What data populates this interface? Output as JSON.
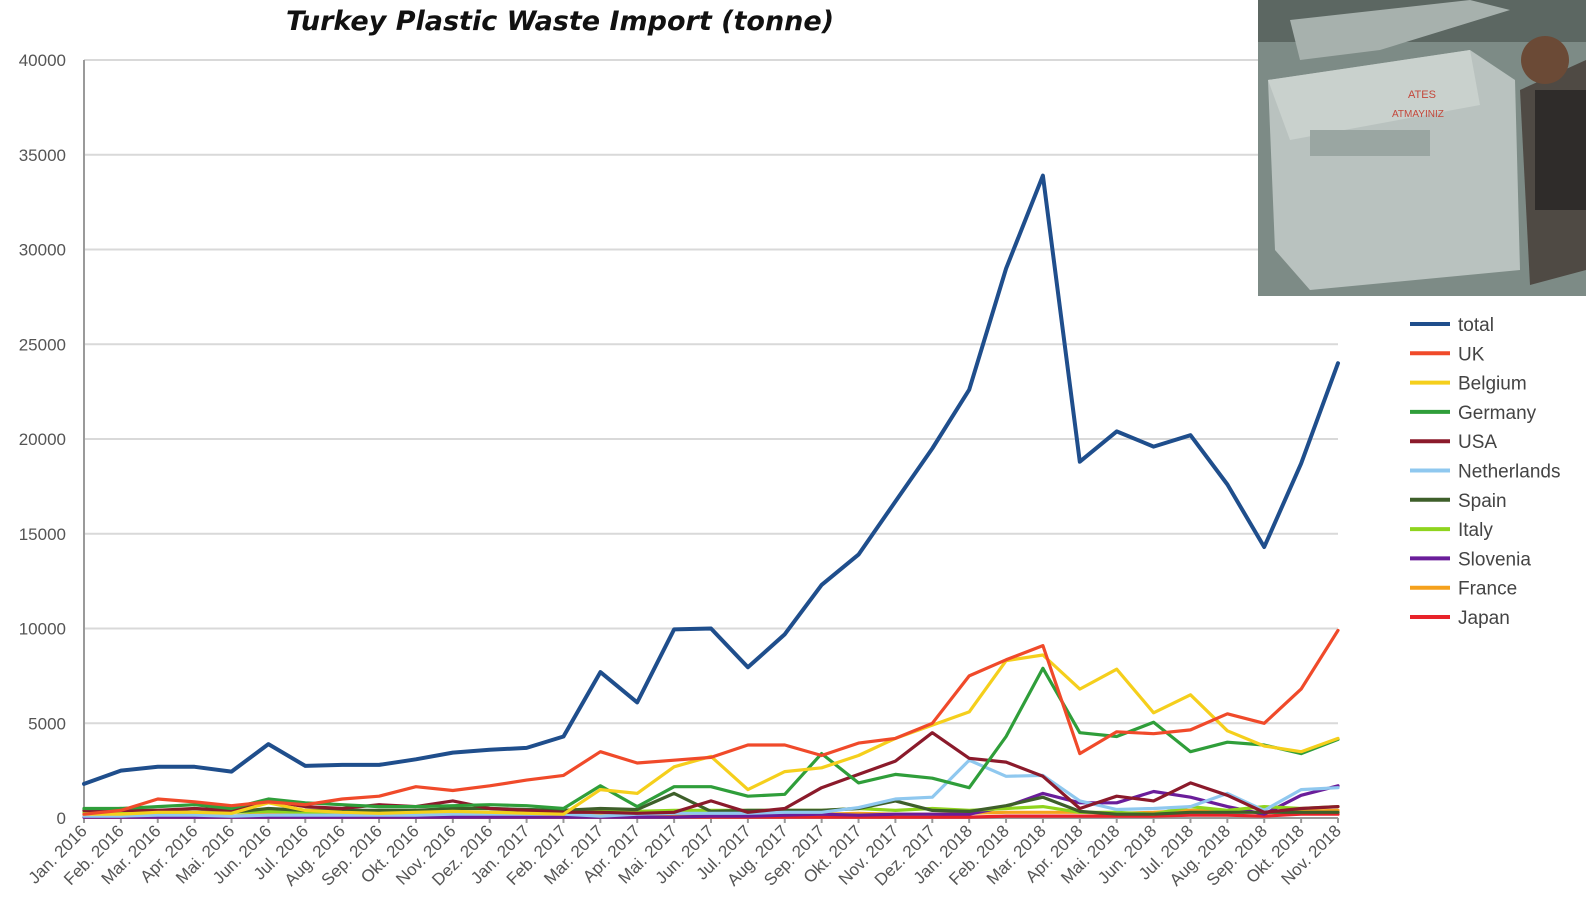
{
  "chart_data": {
    "type": "line",
    "title": "Turkey Plastic Waste Import (tonne)",
    "xlabel": "",
    "ylabel": "",
    "ylim": [
      0,
      40000
    ],
    "yticks": [
      0,
      5000,
      10000,
      15000,
      20000,
      25000,
      30000,
      35000,
      40000
    ],
    "grid": true,
    "legend_position": "right",
    "categories": [
      "Jan. 2016",
      "Feb. 2016",
      "Mar. 2016",
      "Apr. 2016",
      "Mai. 2016",
      "Jun. 2016",
      "Jul. 2016",
      "Aug. 2016",
      "Sep. 2016",
      "Okt. 2016",
      "Nov. 2016",
      "Dez. 2016",
      "Jan. 2017",
      "Feb. 2017",
      "Mar. 2017",
      "Apr. 2017",
      "Mai. 2017",
      "Jun. 2017",
      "Jul. 2017",
      "Aug. 2017",
      "Sep. 2017",
      "Okt. 2017",
      "Nov. 2017",
      "Dez. 2017",
      "Jan. 2018",
      "Feb. 2018",
      "Mar. 2018",
      "Apr. 2018",
      "Mai. 2018",
      "Jun. 2018",
      "Jul. 2018",
      "Aug. 2018",
      "Sep. 2018",
      "Okt. 2018",
      "Nov. 2018"
    ],
    "series": [
      {
        "name": "total",
        "color": "#1f4e8c",
        "values": [
          1800,
          2500,
          2700,
          2700,
          2450,
          3900,
          2750,
          2800,
          2800,
          3100,
          3450,
          3600,
          3700,
          4300,
          7700,
          6100,
          9950,
          10000,
          7950,
          9700,
          12300,
          13900,
          16700,
          19500,
          22600,
          29000,
          33900,
          18800,
          20400,
          19600,
          20200,
          17600,
          14300,
          18700,
          24000
        ]
      },
      {
        "name": "UK",
        "color": "#f04a2a",
        "values": [
          200,
          400,
          1000,
          850,
          650,
          850,
          700,
          1000,
          1150,
          1650,
          1450,
          1700,
          2000,
          2250,
          3500,
          2900,
          3050,
          3200,
          3850,
          3850,
          3300,
          3950,
          4200,
          5000,
          7500,
          8350,
          9100,
          3400,
          4550,
          4450,
          4650,
          5500,
          5000,
          6800,
          9900
        ]
      },
      {
        "name": "Belgium",
        "color": "#f5cf1c",
        "values": [
          200,
          200,
          300,
          300,
          250,
          800,
          400,
          300,
          250,
          300,
          350,
          300,
          250,
          200,
          1500,
          1300,
          2700,
          3250,
          1500,
          2450,
          2650,
          3300,
          4200,
          4900,
          5600,
          8300,
          8600,
          6800,
          7850,
          5550,
          6500,
          4600,
          3800,
          3500,
          4200
        ]
      },
      {
        "name": "Germany",
        "color": "#2f9e3a",
        "values": [
          500,
          500,
          600,
          700,
          500,
          1000,
          800,
          700,
          600,
          600,
          650,
          700,
          650,
          500,
          1700,
          600,
          1650,
          1650,
          1150,
          1250,
          3400,
          1850,
          2300,
          2100,
          1600,
          4300,
          7900,
          4500,
          4300,
          5050,
          3500,
          4000,
          3850,
          3400,
          4150
        ]
      },
      {
        "name": "USA",
        "color": "#8b1a2b",
        "values": [
          400,
          400,
          400,
          500,
          400,
          900,
          600,
          500,
          700,
          600,
          900,
          500,
          400,
          300,
          300,
          250,
          300,
          900,
          300,
          500,
          1600,
          2300,
          3000,
          4500,
          3150,
          2950,
          2200,
          500,
          1150,
          900,
          1850,
          1200,
          300,
          500,
          600
        ]
      },
      {
        "name": "Netherlands",
        "color": "#8fc8ef",
        "values": [
          100,
          100,
          150,
          150,
          100,
          150,
          150,
          150,
          150,
          150,
          200,
          200,
          200,
          200,
          100,
          200,
          250,
          250,
          250,
          300,
          300,
          550,
          1000,
          1100,
          3050,
          2200,
          2250,
          900,
          450,
          500,
          600,
          1300,
          400,
          1500,
          1600
        ]
      },
      {
        "name": "Spain",
        "color": "#3e5f2a",
        "values": [
          400,
          500,
          300,
          300,
          300,
          500,
          400,
          400,
          400,
          400,
          500,
          500,
          450,
          400,
          500,
          450,
          1300,
          350,
          400,
          400,
          400,
          500,
          900,
          400,
          350,
          650,
          1100,
          350,
          200,
          200,
          300,
          300,
          300,
          300,
          300
        ]
      },
      {
        "name": "Italy",
        "color": "#8fd41e",
        "values": [
          300,
          300,
          300,
          300,
          300,
          350,
          300,
          300,
          300,
          300,
          300,
          300,
          300,
          300,
          350,
          350,
          400,
          400,
          400,
          400,
          400,
          500,
          400,
          500,
          400,
          500,
          600,
          300,
          300,
          200,
          600,
          400,
          600,
          500,
          600
        ]
      },
      {
        "name": "Slovenia",
        "color": "#6a1d9a",
        "values": [
          50,
          50,
          50,
          50,
          50,
          50,
          50,
          50,
          50,
          50,
          50,
          50,
          50,
          50,
          50,
          50,
          50,
          100,
          100,
          150,
          200,
          150,
          200,
          200,
          200,
          600,
          1300,
          800,
          800,
          1400,
          1100,
          600,
          200,
          1200,
          1700
        ]
      },
      {
        "name": "France",
        "color": "#f5a11c",
        "values": [
          100,
          100,
          100,
          100,
          100,
          200,
          150,
          150,
          150,
          150,
          200,
          150,
          150,
          200,
          200,
          200,
          200,
          200,
          200,
          200,
          200,
          250,
          200,
          200,
          250,
          300,
          300,
          300,
          250,
          300,
          400,
          350,
          300,
          350,
          400
        ]
      },
      {
        "name": "Japan",
        "color": "#e8232a",
        "values": [
          50,
          50,
          50,
          50,
          50,
          50,
          50,
          50,
          50,
          50,
          50,
          50,
          50,
          50,
          50,
          50,
          50,
          50,
          50,
          50,
          50,
          50,
          50,
          50,
          50,
          100,
          100,
          100,
          100,
          100,
          150,
          150,
          100,
          200,
          200
        ]
      }
    ]
  }
}
